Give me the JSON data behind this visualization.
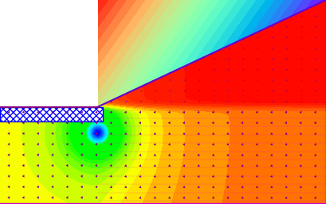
{
  "figsize": [
    4.09,
    2.57
  ],
  "dpi": 100,
  "xlim": [
    0,
    10
  ],
  "ylim": [
    0,
    6.3
  ],
  "dam_toe_x": 3.0,
  "dam_crest_x": 10.0,
  "dam_crest_y": 6.3,
  "dam_base_y": 3.0,
  "foundation_top_y": 3.0,
  "foundation_bottom_y": 0.0,
  "sheet_pile_x": 3.0,
  "sheet_pile_top_y": 3.0,
  "sheet_pile_bottom_y": 2.2,
  "upstream_water_level": 3.0,
  "colormap": "rainbow",
  "arrow_color_body": "#800080",
  "arrow_color_head_bright": "#ff00ff",
  "border_color": "#800080",
  "bottom_border_color": "#800080",
  "hatching_color": "#0000ff",
  "background_color": "#ffffff"
}
